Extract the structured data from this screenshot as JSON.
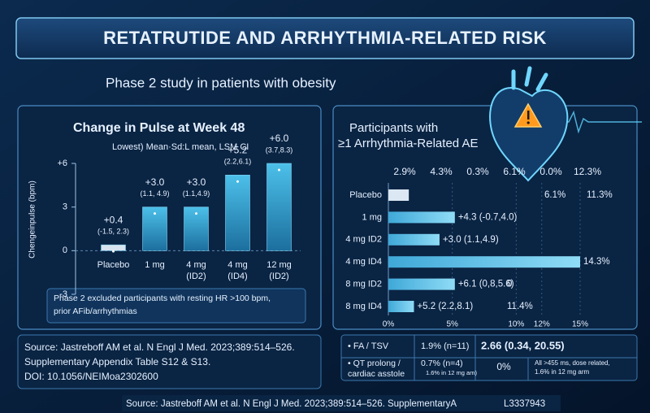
{
  "header": {
    "title": "RETATRUTIDE AND ARRHYTHMIA-RELATED RISK",
    "subtitle": "Phase 2 study in patients with obesity"
  },
  "chart_data": [
    {
      "type": "bar",
      "title": "Change in Pulse at Week 48",
      "subtitle": "Lowest) Mean·Sd:L mean, LSM CI",
      "y_label": "Chengeinpulse (bpm)",
      "categories": [
        [
          "Placebo"
        ],
        [
          "1 mg"
        ],
        [
          "4 mg",
          "(ID2)"
        ],
        [
          "4 mg",
          "(ID4)"
        ],
        [
          "12 mg",
          "(ID2)"
        ]
      ],
      "values": [
        0.4,
        3.0,
        3.0,
        5.2,
        6.0
      ],
      "value_labels": [
        "+0.4",
        "+3.0",
        "+3.0",
        "+5.2",
        "+6.0"
      ],
      "ci_labels": [
        "(-1.5, 2.3)",
        "(1.1, 4.9)",
        "(1.1,4.9)",
        "(2.2,6.1)",
        "(3.7,8.3)"
      ],
      "color": "#2a9fd0",
      "placebo_color": "#d8e4ef",
      "ylim": [
        -3,
        6
      ],
      "yticks": [
        {
          "value": -3,
          "label": "-3"
        },
        0,
        3,
        {
          "value": 6,
          "label": "+6"
        }
      ],
      "note": [
        "Phase 2 excluded participants with resting HR >100 bpm,",
        "prior AFib/arrhythmias"
      ]
    },
    {
      "type": "barh",
      "title": "Participants with",
      "subtitle": "≥1 Arrhythmia-Related AE",
      "top_row": [
        "2.9%",
        "4.3%",
        "0.3%",
        "6.1%",
        "0.0%",
        "12.3%"
      ],
      "categories": [
        "Placebo",
        "1 mg",
        "4 mg ID2",
        "4 mg ID4",
        "8 mg ID2",
        "8 mg ID4"
      ],
      "values": [
        1.6,
        5.2,
        4.0,
        15.0,
        5.2,
        2.0
      ],
      "row_labels": [
        [
          "6.1%",
          "11.3%"
        ],
        [
          "+4.3 (-0.7,4.0)"
        ],
        [
          "+3.0 (1.1,4.9)"
        ],
        [
          "14.3%"
        ],
        [
          "+6.1 (0,8,5.6)",
          "0"
        ],
        [
          "+5.2 (2.2,8.1)",
          "11.4%"
        ]
      ],
      "color": "#5fc3ec",
      "placebo_color": "#dbe7f2",
      "xlim": [
        0,
        15
      ],
      "xticks": [
        {
          "value": 0,
          "label": "0%"
        },
        {
          "value": 5,
          "label": "5%"
        },
        {
          "value": 10,
          "label": "10%"
        },
        {
          "value": 12,
          "label": "12%"
        },
        {
          "value": 15,
          "label": "15%"
        }
      ],
      "grid": true
    }
  ],
  "source": {
    "lines": [
      "Source: Jastreboff AM et al. N Engl J Med. 2023;389:514–526.",
      "Supplementary Appendix Table S12 & S13.",
      "DOI: 10.1056/NEIMoa2302600"
    ]
  },
  "table": {
    "rows": [
      [
        "• FA / TSV",
        "1.9% (n=11)",
        "2.66 (0.34, 20.55)"
      ],
      [
        [
          "• QT prolong /",
          "cardiac asstole"
        ],
        [
          "0.7% (n=4)",
          "1.6% in 12 mg am)"
        ],
        "0%",
        [
          "All >455 ms, dose related,",
          "1.6% in 12 mg arm"
        ]
      ]
    ]
  },
  "footer": {
    "text": "Source: Jastreboff AM et al. N Engl J Med. 2023;389:514–526. SupplementaryA",
    "code": "L3337943"
  }
}
